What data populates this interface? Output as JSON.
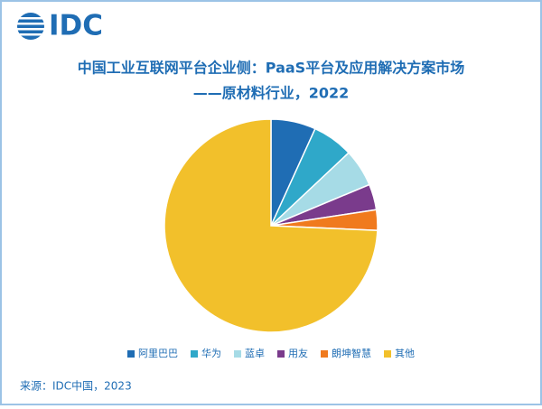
{
  "logo": "IDC",
  "chart_data": {
    "type": "pie",
    "title": "中国工业互联网平台企业侧：PaaS平台及应用解决方案市场",
    "subtitle": "——原材料行业，2022",
    "categories": [
      "阿里巴巴",
      "华为",
      "蓝卓",
      "用友",
      "朗坤智慧",
      "其他"
    ],
    "values": [
      6.8,
      6.2,
      5.7,
      3.9,
      3.1,
      74.3
    ],
    "colors": [
      "#1f6db4",
      "#2fa8c9",
      "#a6dbe6",
      "#7a3b8c",
      "#f07a1e",
      "#f2c02b"
    ],
    "legend": "bottom"
  },
  "source": "来源：IDC中国，2023"
}
